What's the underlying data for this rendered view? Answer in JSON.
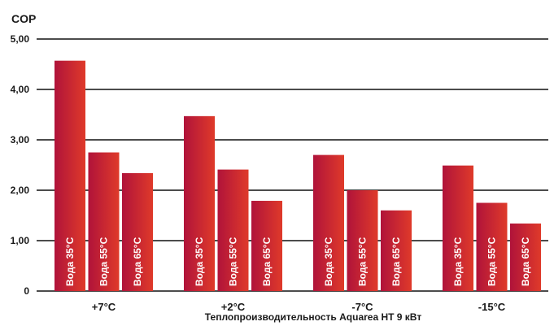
{
  "chart_data": {
    "type": "bar",
    "ylabel": "COP",
    "xlabel": "Теплопроизводительность Aquarea HT 9 кВт",
    "categories": [
      "+7°C",
      "+2°C",
      "-7°C",
      "-15°C"
    ],
    "series": [
      {
        "name": "Вода 35°C",
        "values": [
          4.57,
          3.47,
          2.7,
          2.49
        ]
      },
      {
        "name": "Вода 55°C",
        "values": [
          2.75,
          2.41,
          2.0,
          1.75
        ]
      },
      {
        "name": "Вода 65°C",
        "values": [
          2.34,
          1.79,
          1.6,
          1.34
        ]
      }
    ],
    "ylim": [
      0,
      5
    ],
    "yticks": [
      "0",
      "1,00",
      "2,00",
      "3,00",
      "4,00",
      "5,00"
    ],
    "grid": true,
    "colors": {
      "bar_start": "#b0133a",
      "bar_end": "#df3a2a",
      "grid": "#111111"
    }
  }
}
